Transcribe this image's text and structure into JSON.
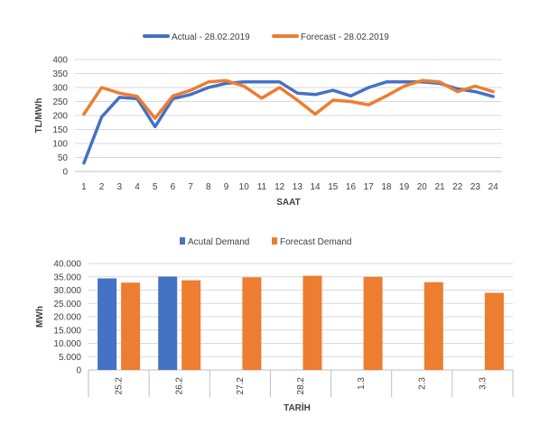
{
  "chart_data": [
    {
      "type": "line",
      "title": "",
      "xlabel": "SAAT",
      "ylabel": "TL/MWh",
      "ylim": [
        0,
        400
      ],
      "yticks": [
        0,
        50,
        100,
        150,
        200,
        250,
        300,
        350,
        400
      ],
      "grid": true,
      "legend_position": "top",
      "categories": [
        "1",
        "2",
        "3",
        "4",
        "5",
        "6",
        "7",
        "8",
        "9",
        "10",
        "11",
        "12",
        "13",
        "14",
        "15",
        "16",
        "17",
        "18",
        "19",
        "20",
        "21",
        "22",
        "23",
        "24"
      ],
      "series": [
        {
          "name": "Actual - 28.02.2019",
          "color": "#4472c4",
          "values": [
            30,
            195,
            265,
            260,
            160,
            260,
            275,
            300,
            315,
            320,
            320,
            320,
            280,
            275,
            290,
            270,
            300,
            320,
            320,
            320,
            315,
            295,
            285,
            268
          ]
        },
        {
          "name": "Forecast - 28.02.2019",
          "color": "#ed7d31",
          "values": [
            205,
            300,
            280,
            268,
            190,
            270,
            290,
            320,
            325,
            305,
            262,
            300,
            255,
            205,
            255,
            250,
            238,
            270,
            305,
            325,
            320,
            285,
            305,
            285
          ]
        }
      ]
    },
    {
      "type": "bar",
      "title": "",
      "xlabel": "TARİH",
      "ylabel": "MWh",
      "ylim": [
        0,
        40000
      ],
      "yticks": [
        "0",
        "5.000",
        "10.000",
        "15.000",
        "20.000",
        "25.000",
        "30.000",
        "35.000",
        "40.000"
      ],
      "grid": true,
      "legend_position": "top",
      "categories": [
        "25.2",
        "26.2",
        "27.2",
        "28.2",
        "1.3",
        "2.3",
        "3.3"
      ],
      "series": [
        {
          "name": "Acutal Demand",
          "color": "#4472c4",
          "values": [
            34400,
            35100,
            null,
            null,
            null,
            null,
            null
          ]
        },
        {
          "name": "Forecast Demand",
          "color": "#ed7d31",
          "values": [
            32800,
            33700,
            34800,
            35400,
            35000,
            33000,
            29000
          ]
        }
      ]
    }
  ]
}
